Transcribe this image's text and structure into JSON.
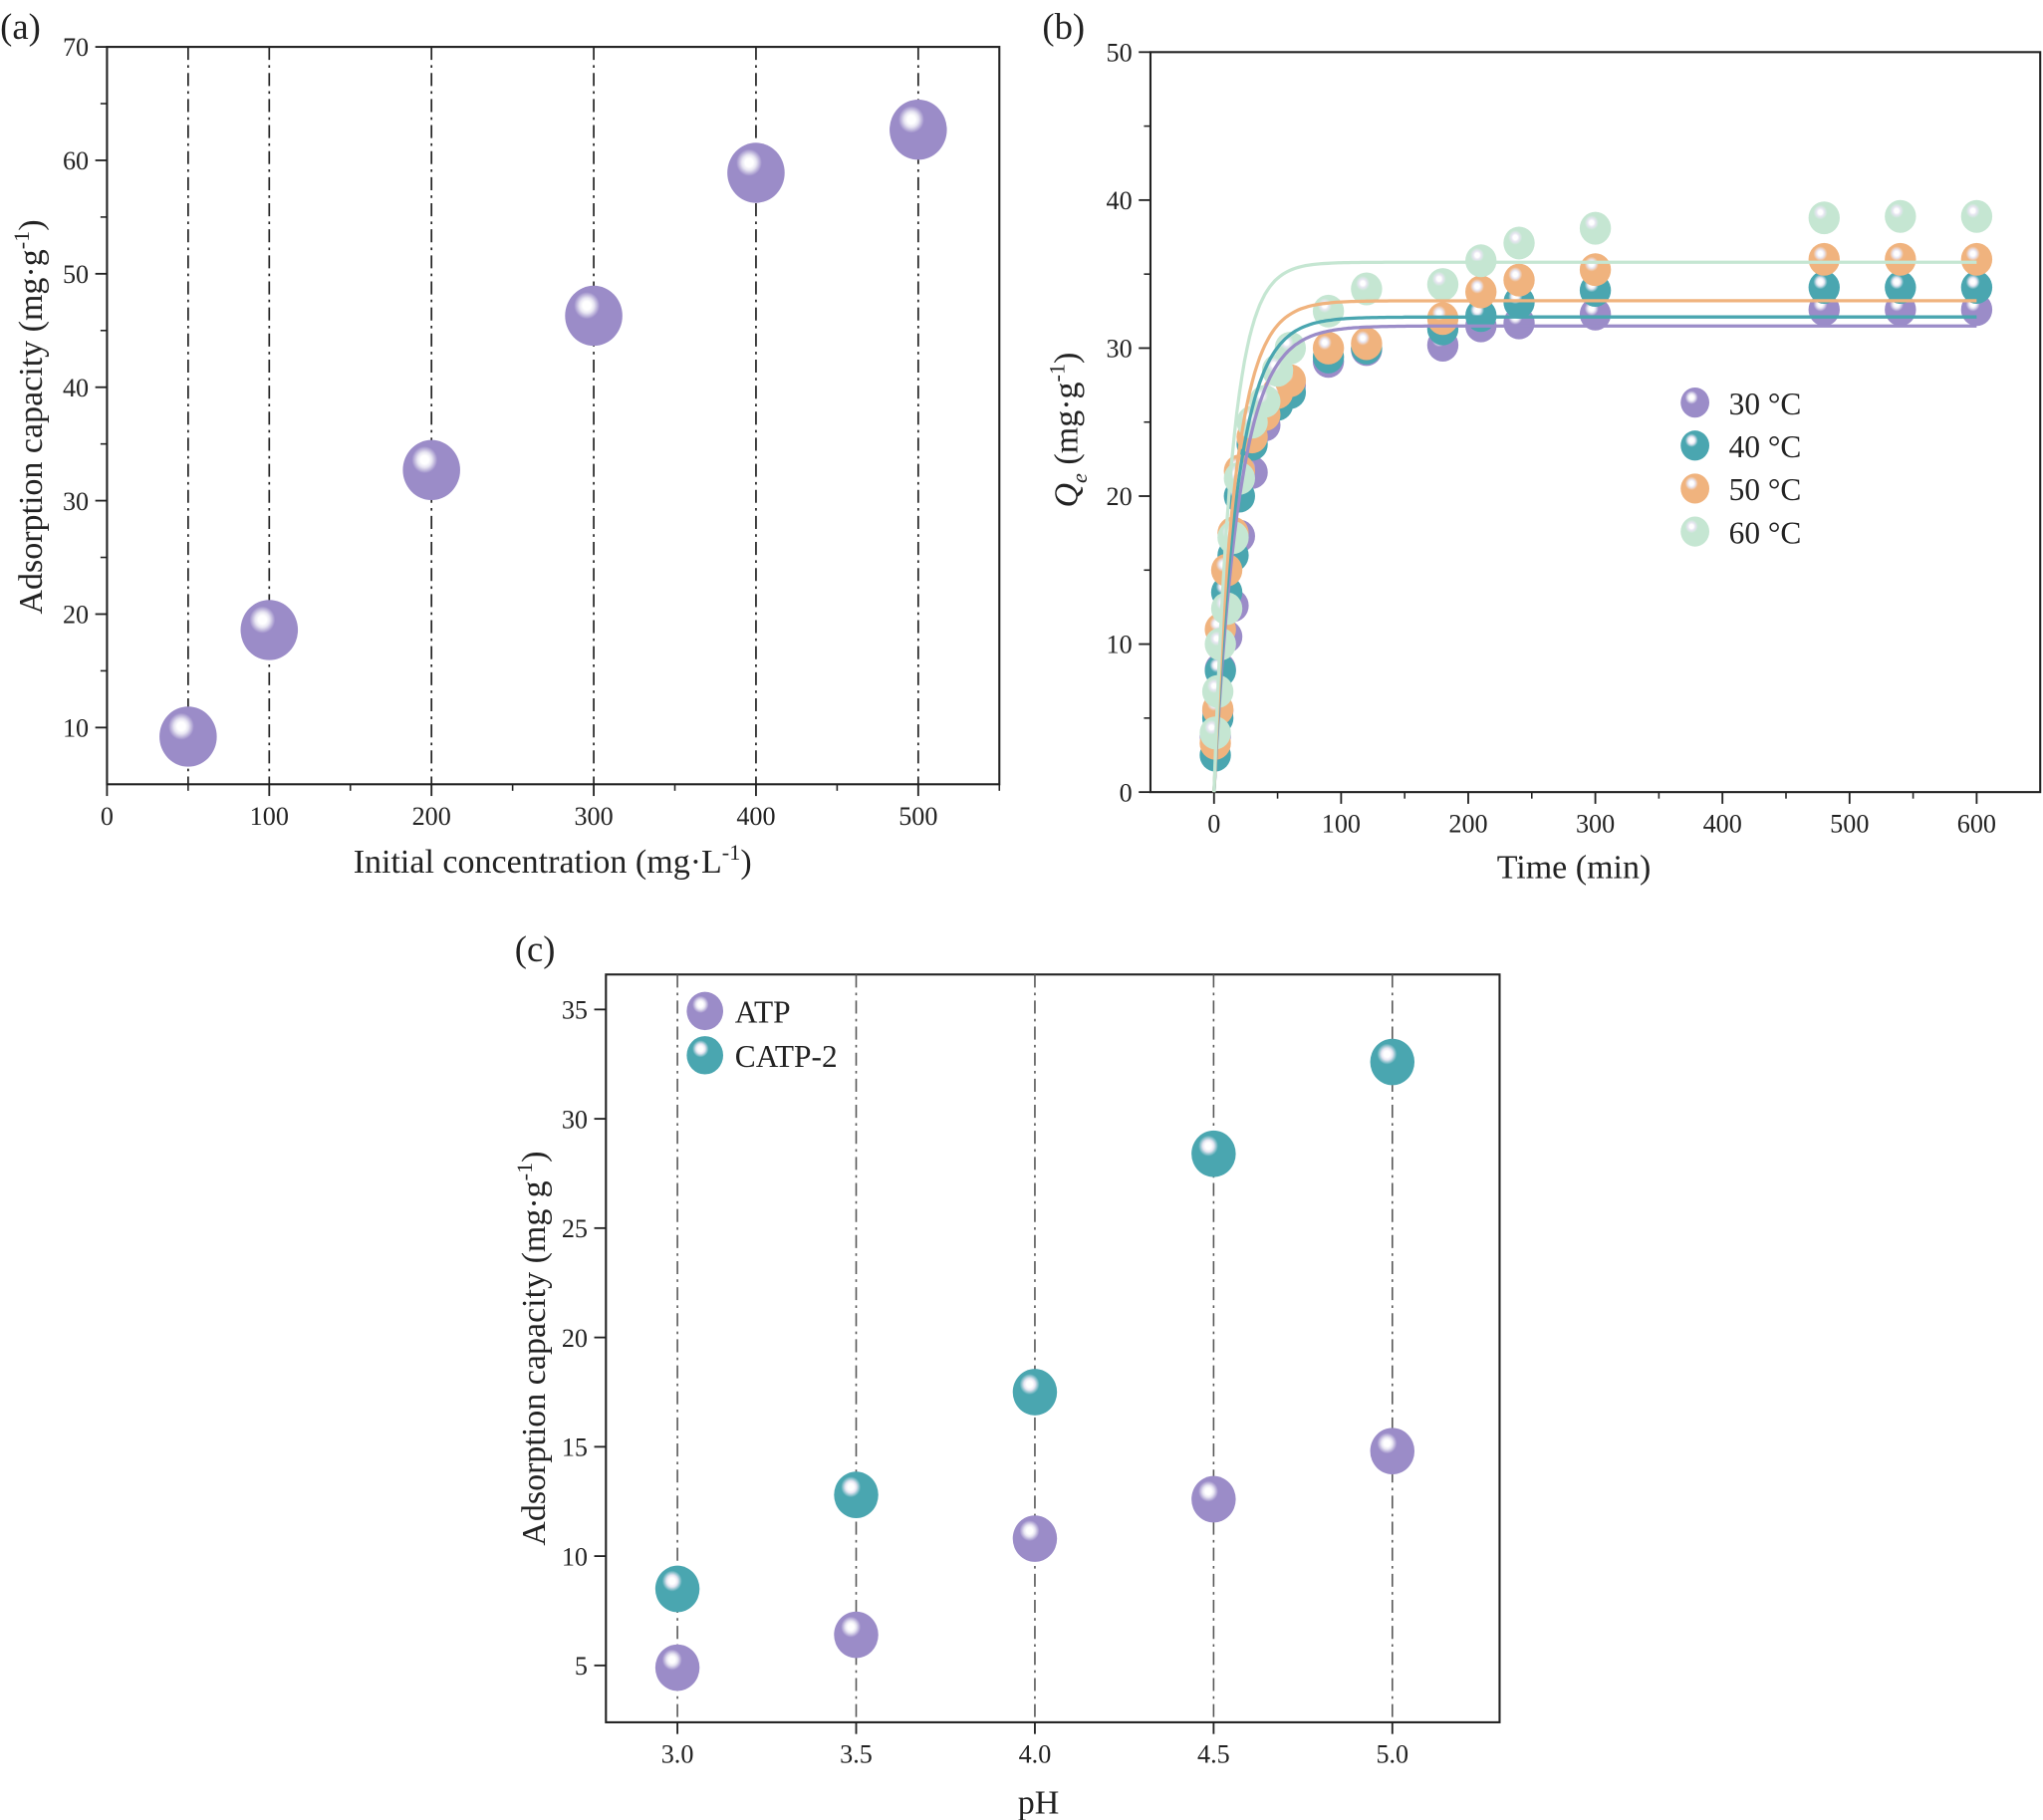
{
  "chart_data": [
    {
      "panel": "(a)",
      "type": "scatter",
      "xlabel": "Initial concentration (mg·L",
      "xlabel_sup": "-1",
      "ylabel": "Adsorption capacity (mg·g",
      "ylabel_sup": "-1",
      "xlim": [
        0,
        550
      ],
      "ylim": [
        5,
        70
      ],
      "xticks": [
        0,
        100,
        200,
        300,
        400,
        500
      ],
      "yticks": [
        10,
        20,
        30,
        40,
        50,
        60,
        70
      ],
      "grid": "vertical dash-dot lines at each data x",
      "series": [
        {
          "color": "#9b8cc8",
          "x": [
            50,
            100,
            200,
            300,
            400,
            500
          ],
          "y": [
            9.2,
            18.6,
            32.7,
            46.3,
            58.9,
            62.7
          ]
        }
      ]
    },
    {
      "panel": "(b)",
      "type": "scatter",
      "xlabel": "Time (min)",
      "ylabel": "Q",
      "ylabel_sub": "e",
      "ylabel_unit": " (mg·g",
      "ylabel_sup": "-1",
      "xlim": [
        -50,
        650
      ],
      "ylim": [
        0,
        50
      ],
      "xticks": [
        0,
        100,
        200,
        300,
        400,
        500,
        600
      ],
      "yticks": [
        0,
        10,
        20,
        30,
        40,
        50
      ],
      "legend_position": "center-right",
      "x": [
        1,
        3,
        5,
        10,
        15,
        20,
        30,
        40,
        50,
        60,
        90,
        120,
        180,
        210,
        240,
        300,
        480,
        540,
        600
      ],
      "series": [
        {
          "name": "30 °C",
          "color": "#9b8cc8",
          "fit_qe": 31.5,
          "fit_k": 0.05,
          "y": [
            3.8,
            5.5,
            8.3,
            10.5,
            12.6,
            17.3,
            21.6,
            24.8,
            26.5,
            27.5,
            29.1,
            29.9,
            30.2,
            31.5,
            31.7,
            32.3,
            32.6,
            32.6,
            32.6
          ]
        },
        {
          "name": "40 °C",
          "color": "#4aa6b0",
          "fit_qe": 32.1,
          "fit_k": 0.055,
          "y": [
            2.5,
            5.0,
            8.2,
            13.5,
            16.0,
            20.0,
            23.5,
            25.5,
            26.2,
            27.0,
            29.4,
            30.0,
            31.3,
            32.2,
            33.1,
            33.9,
            34.1,
            34.1,
            34.1
          ]
        },
        {
          "name": "50 °C",
          "color": "#f0b37e",
          "fit_qe": 33.2,
          "fit_k": 0.06,
          "y": [
            3.3,
            5.6,
            11.0,
            15.0,
            17.5,
            21.7,
            24.0,
            25.5,
            27.0,
            27.8,
            30.0,
            30.3,
            32.0,
            33.8,
            34.6,
            35.3,
            36.0,
            36.0,
            36.0
          ]
        },
        {
          "name": "60 °C",
          "color": "#c5e6d2",
          "fit_qe": 35.8,
          "fit_k": 0.07,
          "y": [
            4.0,
            6.8,
            10.0,
            12.4,
            17.2,
            21.2,
            25.0,
            26.4,
            28.5,
            30.0,
            32.5,
            34.0,
            34.3,
            35.9,
            37.1,
            38.1,
            38.8,
            38.9,
            38.9
          ]
        }
      ]
    },
    {
      "panel": "(c)",
      "type": "scatter",
      "xlabel": "pH",
      "ylabel": "Adsorption capacity (mg·g",
      "ylabel_sup": "-1",
      "xlim": [
        2.8,
        5.3
      ],
      "ylim": [
        2.4,
        36.6
      ],
      "xticks": [
        "3.0",
        "3.5",
        "4.0",
        "4.5",
        "5.0"
      ],
      "yticks": [
        5,
        10,
        15,
        20,
        25,
        30,
        35
      ],
      "grid": "vertical dash-dot lines at each data x",
      "legend_position": "top-left",
      "x": [
        3.0,
        3.5,
        4.0,
        4.5,
        5.0
      ],
      "series": [
        {
          "name": "ATP",
          "color": "#9b8cc8",
          "y": [
            4.9,
            6.4,
            10.8,
            12.6,
            14.8
          ]
        },
        {
          "name": "CATP-2",
          "color": "#4aa6b0",
          "y": [
            8.5,
            12.8,
            17.5,
            28.4,
            32.6
          ]
        }
      ]
    }
  ]
}
